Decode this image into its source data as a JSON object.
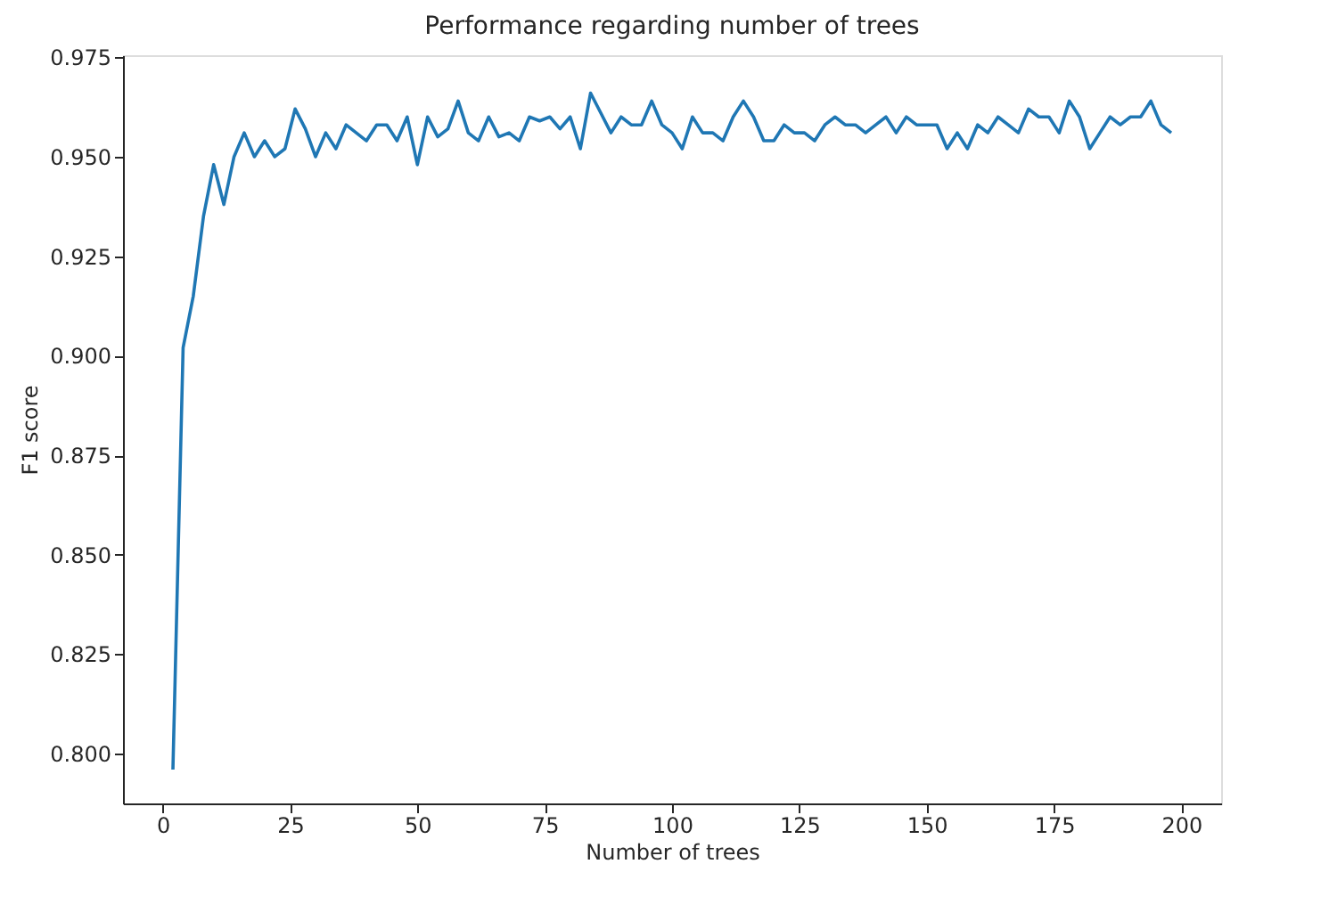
{
  "chart_data": {
    "type": "line",
    "title": "Performance regarding number of trees",
    "xlabel": "Number of trees",
    "ylabel": "F1 score",
    "x": [
      2,
      4,
      6,
      8,
      10,
      12,
      14,
      16,
      18,
      20,
      22,
      24,
      26,
      28,
      30,
      32,
      34,
      36,
      38,
      40,
      42,
      44,
      46,
      48,
      50,
      52,
      54,
      56,
      58,
      60,
      62,
      64,
      66,
      68,
      70,
      72,
      74,
      76,
      78,
      80,
      82,
      84,
      86,
      88,
      90,
      92,
      94,
      96,
      98,
      100,
      102,
      104,
      106,
      108,
      110,
      112,
      114,
      116,
      118,
      120,
      122,
      124,
      126,
      128,
      130,
      132,
      134,
      136,
      138,
      140,
      142,
      144,
      146,
      148,
      150,
      152,
      154,
      156,
      158,
      160,
      162,
      164,
      166,
      168,
      170,
      172,
      174,
      176,
      178,
      180,
      182,
      184,
      186,
      188,
      190,
      192,
      194,
      196,
      198
    ],
    "series": [
      {
        "color": "#1f77b4",
        "values": [
          0.796,
          0.902,
          0.915,
          0.935,
          0.948,
          0.938,
          0.95,
          0.956,
          0.95,
          0.954,
          0.95,
          0.952,
          0.962,
          0.957,
          0.95,
          0.956,
          0.952,
          0.958,
          0.956,
          0.954,
          0.958,
          0.958,
          0.954,
          0.96,
          0.948,
          0.96,
          0.955,
          0.957,
          0.964,
          0.956,
          0.954,
          0.96,
          0.955,
          0.956,
          0.954,
          0.96,
          0.959,
          0.96,
          0.957,
          0.96,
          0.952,
          0.966,
          0.961,
          0.956,
          0.96,
          0.958,
          0.958,
          0.964,
          0.958,
          0.956,
          0.952,
          0.96,
          0.956,
          0.956,
          0.954,
          0.96,
          0.964,
          0.96,
          0.954,
          0.954,
          0.958,
          0.956,
          0.956,
          0.954,
          0.958,
          0.96,
          0.958,
          0.958,
          0.956,
          0.958,
          0.96,
          0.956,
          0.96,
          0.958,
          0.958,
          0.958,
          0.952,
          0.956,
          0.952,
          0.958,
          0.956,
          0.96,
          0.958,
          0.956,
          0.962,
          0.96,
          0.96,
          0.956,
          0.964,
          0.96,
          0.952,
          0.956,
          0.96,
          0.958,
          0.96,
          0.96,
          0.964,
          0.958,
          0.956
        ]
      }
    ],
    "xlim": [
      -7.8,
      207.8
    ],
    "xticks": [
      0,
      25,
      50,
      75,
      100,
      125,
      150,
      175,
      200
    ],
    "ylim": [
      0.7875,
      0.9755
    ],
    "yticks": [
      {
        "value": 0.8,
        "label": "0.800"
      },
      {
        "value": 0.825,
        "label": "0.825"
      },
      {
        "value": 0.85,
        "label": "0.850"
      },
      {
        "value": 0.875,
        "label": "0.875"
      },
      {
        "value": 0.9,
        "label": "0.900"
      },
      {
        "value": 0.925,
        "label": "0.925"
      },
      {
        "value": 0.95,
        "label": "0.950"
      },
      {
        "value": 0.975,
        "label": "0.975"
      }
    ],
    "grid": false,
    "marker": "none",
    "line_style": "solid"
  }
}
